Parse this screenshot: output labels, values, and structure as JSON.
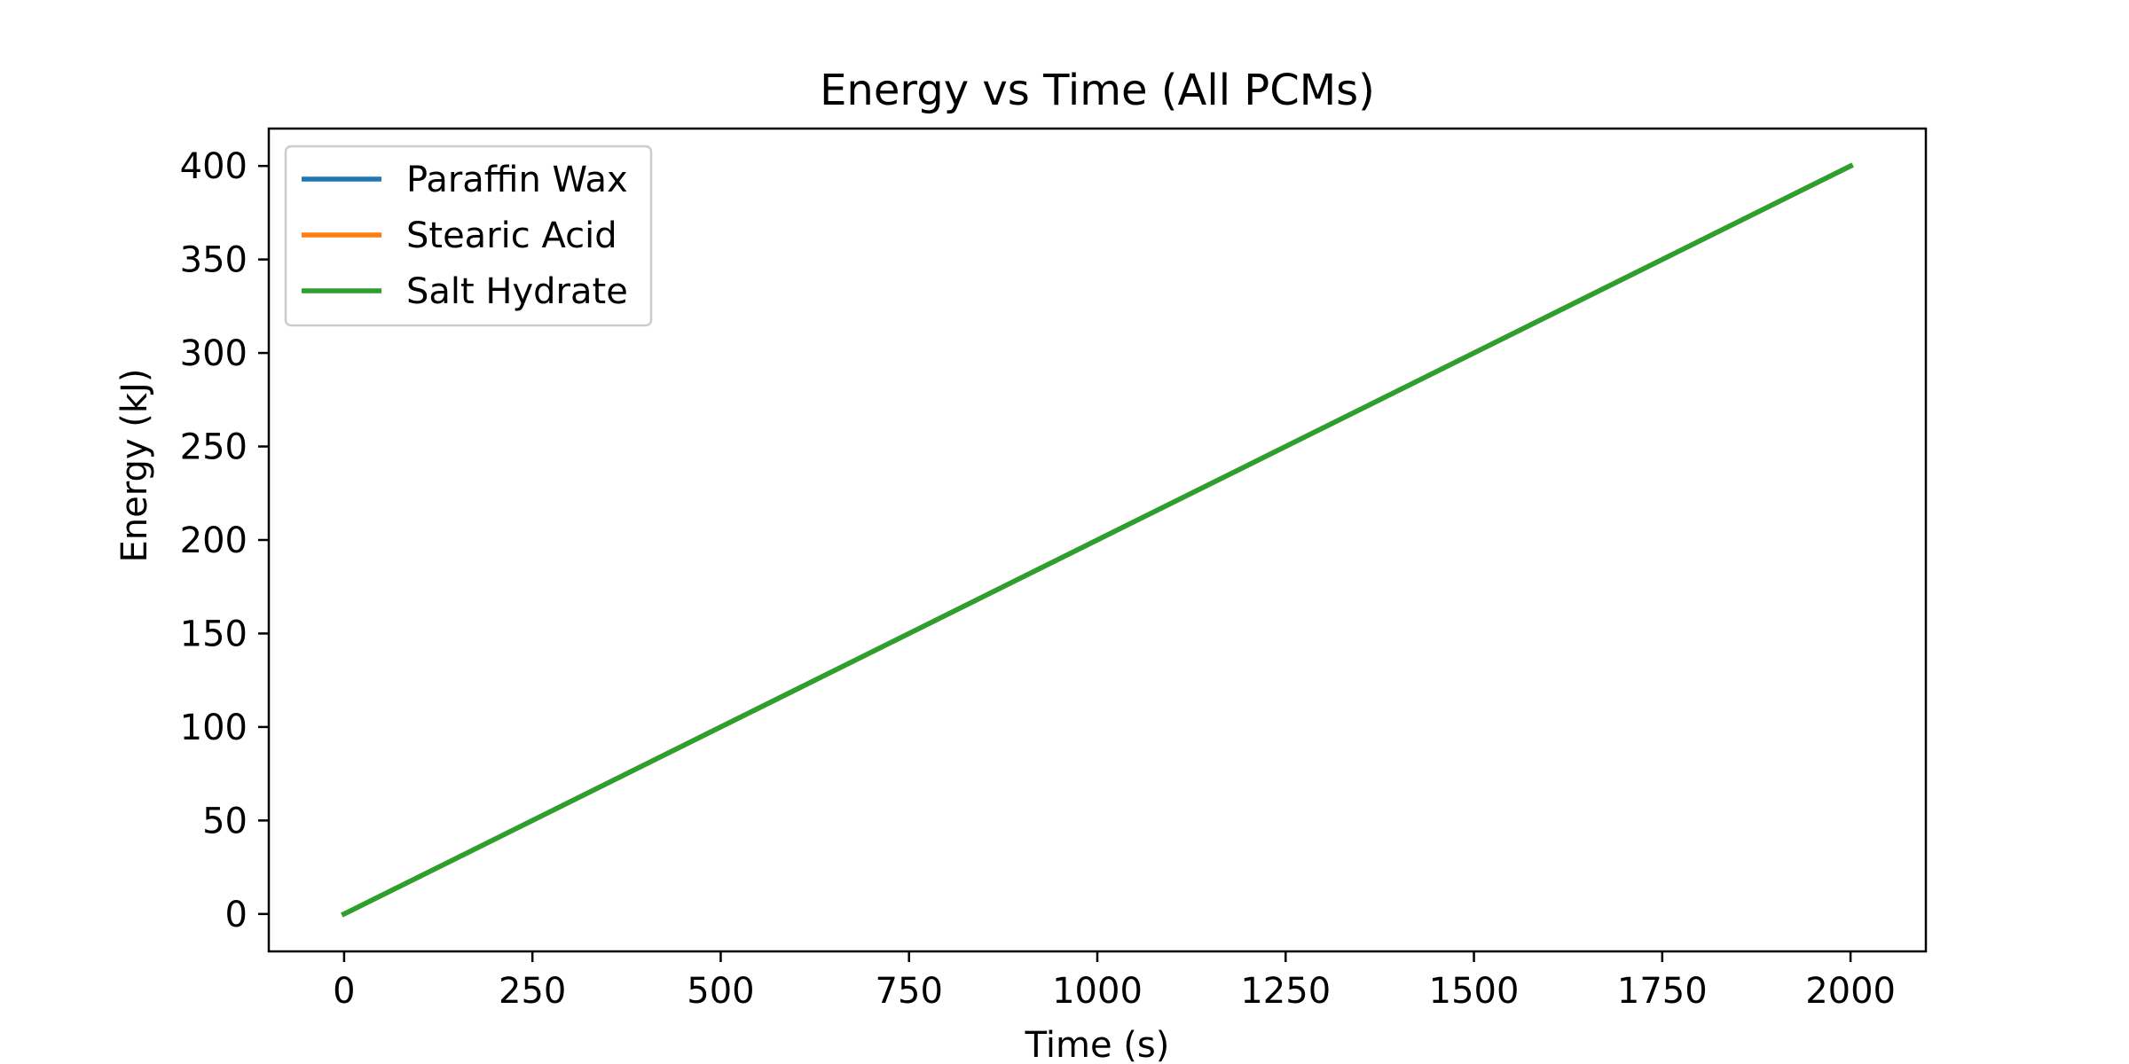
{
  "chart_data": {
    "type": "line",
    "title": "Energy vs Time (All PCMs)",
    "xlabel": "Time (s)",
    "ylabel": "Energy (kJ)",
    "xlim": [
      -100,
      2100
    ],
    "ylim": [
      -20,
      420
    ],
    "xticks": [
      0,
      250,
      500,
      750,
      1000,
      1250,
      1500,
      1750,
      2000
    ],
    "yticks": [
      0,
      50,
      100,
      150,
      200,
      250,
      300,
      350,
      400
    ],
    "xtick_labels": [
      "0",
      "250",
      "500",
      "750",
      "1000",
      "1250",
      "1500",
      "1750",
      "2000"
    ],
    "ytick_labels": [
      "0",
      "50",
      "100",
      "150",
      "200",
      "250",
      "300",
      "350",
      "400"
    ],
    "grid": false,
    "legend_position": "top-left",
    "series": [
      {
        "name": "Paraffin Wax",
        "color": "#1f77b4",
        "x": [
          0,
          2000
        ],
        "y": [
          0,
          400
        ]
      },
      {
        "name": "Stearic Acid",
        "color": "#ff7f0e",
        "x": [
          0,
          2000
        ],
        "y": [
          0,
          400
        ]
      },
      {
        "name": "Salt Hydrate",
        "color": "#2ca02c",
        "x": [
          0,
          2000
        ],
        "y": [
          0,
          400
        ]
      }
    ]
  }
}
